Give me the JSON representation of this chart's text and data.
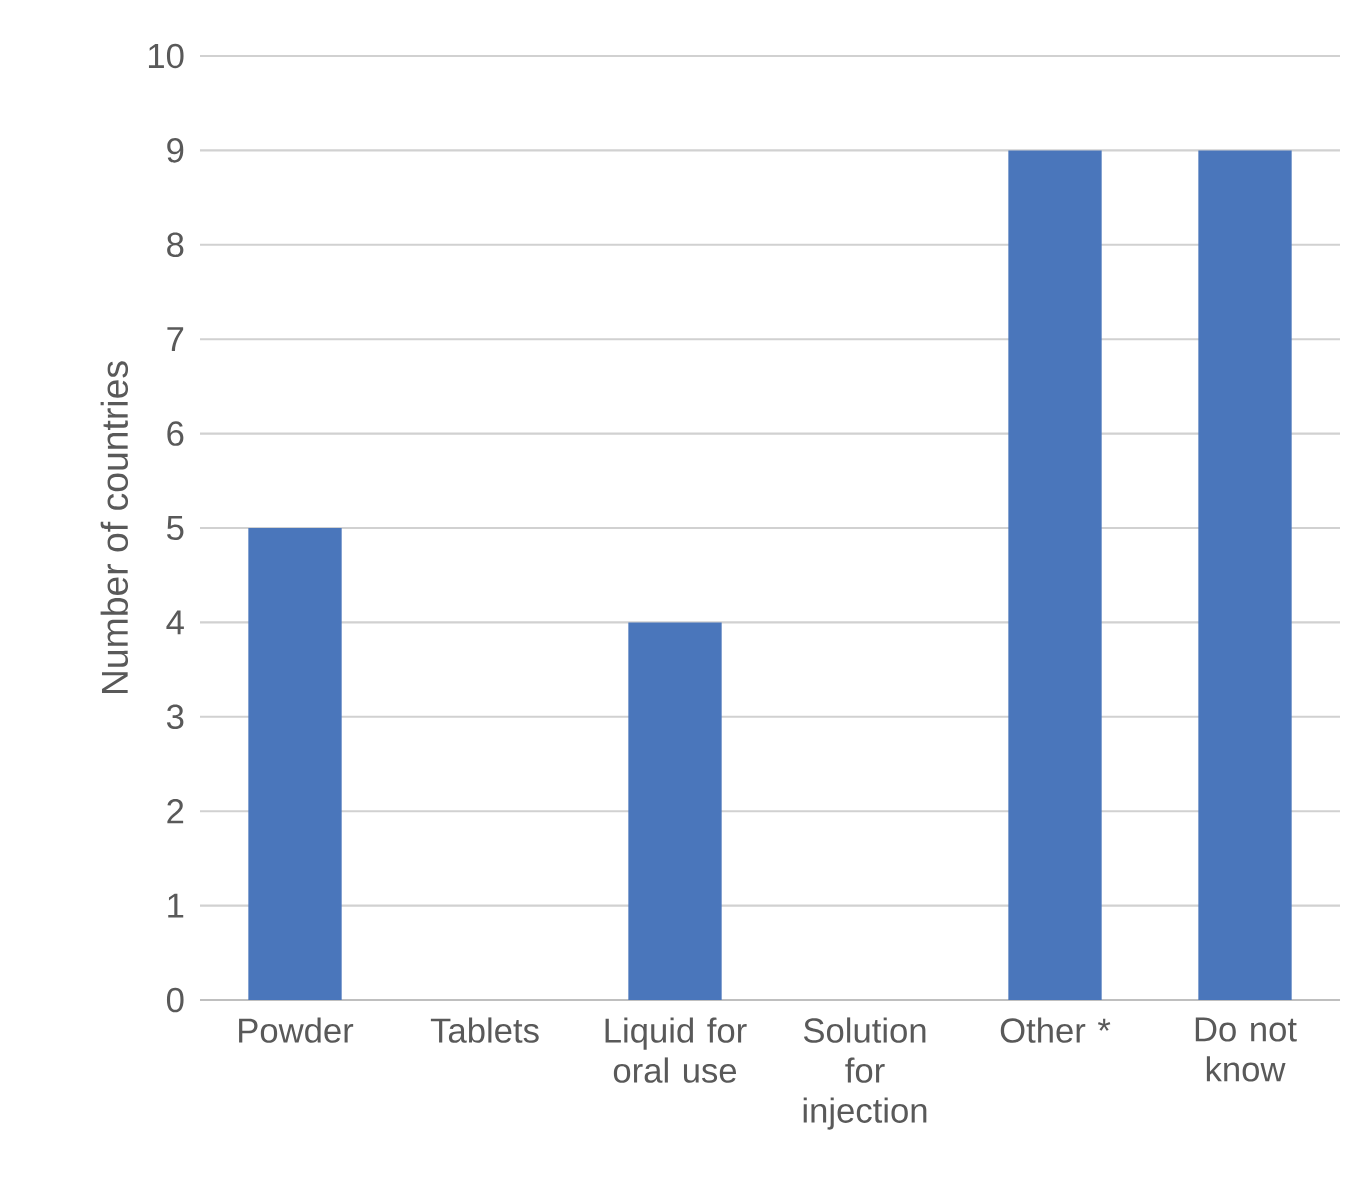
{
  "chart_data": {
    "type": "bar",
    "ylabel": "Number of countries",
    "categories": [
      "Powder",
      "Tablets",
      "Liquid for oral use",
      "Solution for injection",
      "Other *",
      "Do not know"
    ],
    "values": [
      5,
      0,
      4,
      0,
      9,
      9
    ],
    "color": "#4a76bb",
    "ylim": [
      0,
      10
    ],
    "yticks": [
      0,
      1,
      2,
      3,
      4,
      5,
      6,
      7,
      8,
      9,
      10
    ],
    "grid": "y"
  }
}
